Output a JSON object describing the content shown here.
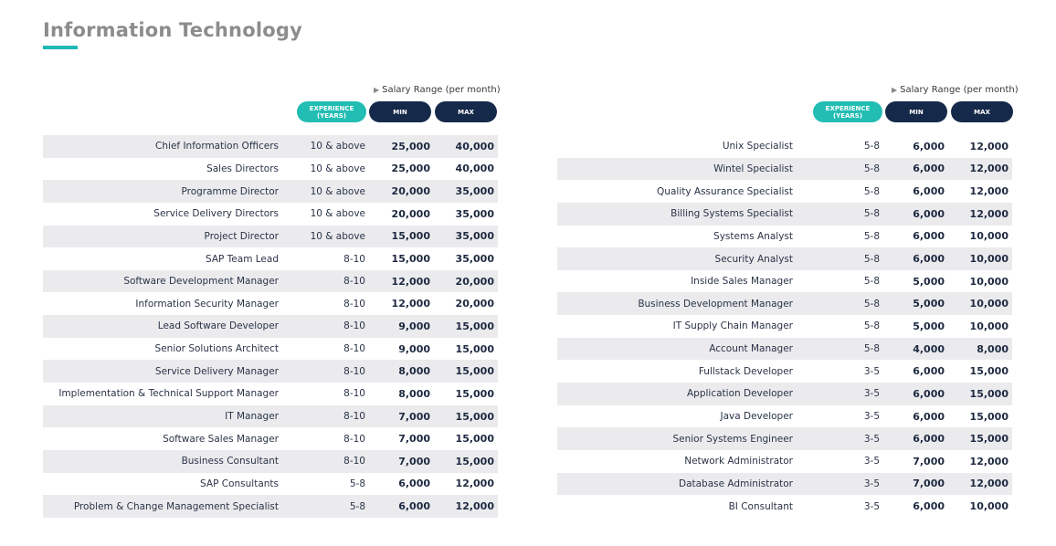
{
  "title": "Information Technology",
  "header": {
    "salary_range": "Salary Range (per month)",
    "experience": "EXPERIENCE\n(YEARS)",
    "min": "MIN",
    "max": "MAX"
  },
  "left_rows": [
    {
      "title": "Chief Information Officers",
      "exp": "10 & above",
      "min": "25,000",
      "max": "40,000"
    },
    {
      "title": "Sales Directors",
      "exp": "10 & above",
      "min": "25,000",
      "max": "40,000"
    },
    {
      "title": "Programme Director",
      "exp": "10 & above",
      "min": "20,000",
      "max": "35,000"
    },
    {
      "title": "Service Delivery Directors",
      "exp": "10 & above",
      "min": "20,000",
      "max": "35,000"
    },
    {
      "title": "Project Director",
      "exp": "10 & above",
      "min": "15,000",
      "max": "35,000"
    },
    {
      "title": "SAP Team Lead",
      "exp": "8-10",
      "min": "15,000",
      "max": "35,000"
    },
    {
      "title": "Software Development Manager",
      "exp": "8-10",
      "min": "12,000",
      "max": "20,000"
    },
    {
      "title": "Information Security Manager",
      "exp": "8-10",
      "min": "12,000",
      "max": "20,000"
    },
    {
      "title": "Lead  Software Developer",
      "exp": "8-10",
      "min": "9,000",
      "max": "15,000"
    },
    {
      "title": "Senior Solutions Architect",
      "exp": "8-10",
      "min": "9,000",
      "max": "15,000"
    },
    {
      "title": "Service Delivery Manager",
      "exp": "8-10",
      "min": "8,000",
      "max": "15,000"
    },
    {
      "title": "Implementation & Technical Support Manager",
      "exp": "8-10",
      "min": "8,000",
      "max": "15,000"
    },
    {
      "title": "IT Manager",
      "exp": "8-10",
      "min": "7,000",
      "max": "15,000"
    },
    {
      "title": "Software Sales Manager",
      "exp": "8-10",
      "min": "7,000",
      "max": "15,000"
    },
    {
      "title": "Business Consultant",
      "exp": "8-10",
      "min": "7,000",
      "max": "15,000"
    },
    {
      "title": "SAP Consultants",
      "exp": "5-8",
      "min": "6,000",
      "max": "12,000"
    },
    {
      "title": "Problem & Change Management Specialist",
      "exp": "5-8",
      "min": "6,000",
      "max": "12,000"
    }
  ],
  "right_rows": [
    {
      "title": "Unix Specialist",
      "exp": "5-8",
      "min": "6,000",
      "max": "12,000"
    },
    {
      "title": "Wintel Specialist",
      "exp": "5-8",
      "min": "6,000",
      "max": "12,000"
    },
    {
      "title": "Quality Assurance Specialist",
      "exp": "5-8",
      "min": "6,000",
      "max": "12,000"
    },
    {
      "title": "Billing Systems Specialist",
      "exp": "5-8",
      "min": "6,000",
      "max": "12,000"
    },
    {
      "title": "Systems Analyst",
      "exp": "5-8",
      "min": "6,000",
      "max": "10,000"
    },
    {
      "title": "Security Analyst",
      "exp": "5-8",
      "min": "6,000",
      "max": "10,000"
    },
    {
      "title": "Inside Sales Manager",
      "exp": "5-8",
      "min": "5,000",
      "max": "10,000"
    },
    {
      "title": "Business  Development Manager",
      "exp": "5-8",
      "min": "5,000",
      "max": "10,000"
    },
    {
      "title": "IT Supply Chain Manager",
      "exp": "5-8",
      "min": "5,000",
      "max": "10,000"
    },
    {
      "title": "Account Manager",
      "exp": "5-8",
      "min": "4,000",
      "max": "8,000"
    },
    {
      "title": "Fullstack Developer",
      "exp": "3-5",
      "min": "6,000",
      "max": "15,000"
    },
    {
      "title": "Application Developer",
      "exp": "3-5",
      "min": "6,000",
      "max": "15,000"
    },
    {
      "title": "Java Developer",
      "exp": "3-5",
      "min": "6,000",
      "max": "15,000"
    },
    {
      "title": "Senior Systems Engineer",
      "exp": "3-5",
      "min": "6,000",
      "max": "15,000"
    },
    {
      "title": "Network Administrator",
      "exp": "3-5",
      "min": "7,000",
      "max": "12,000"
    },
    {
      "title": "Database Administrator",
      "exp": "3-5",
      "min": "7,000",
      "max": "12,000"
    },
    {
      "title": "BI Consultant",
      "exp": "3-5",
      "min": "6,000",
      "max": "10,000"
    }
  ],
  "colors": {
    "accent": "#1fb8b5",
    "navy": "#15294a",
    "row_shade": "#ebebee",
    "title_gray": "#8c8c8c"
  }
}
